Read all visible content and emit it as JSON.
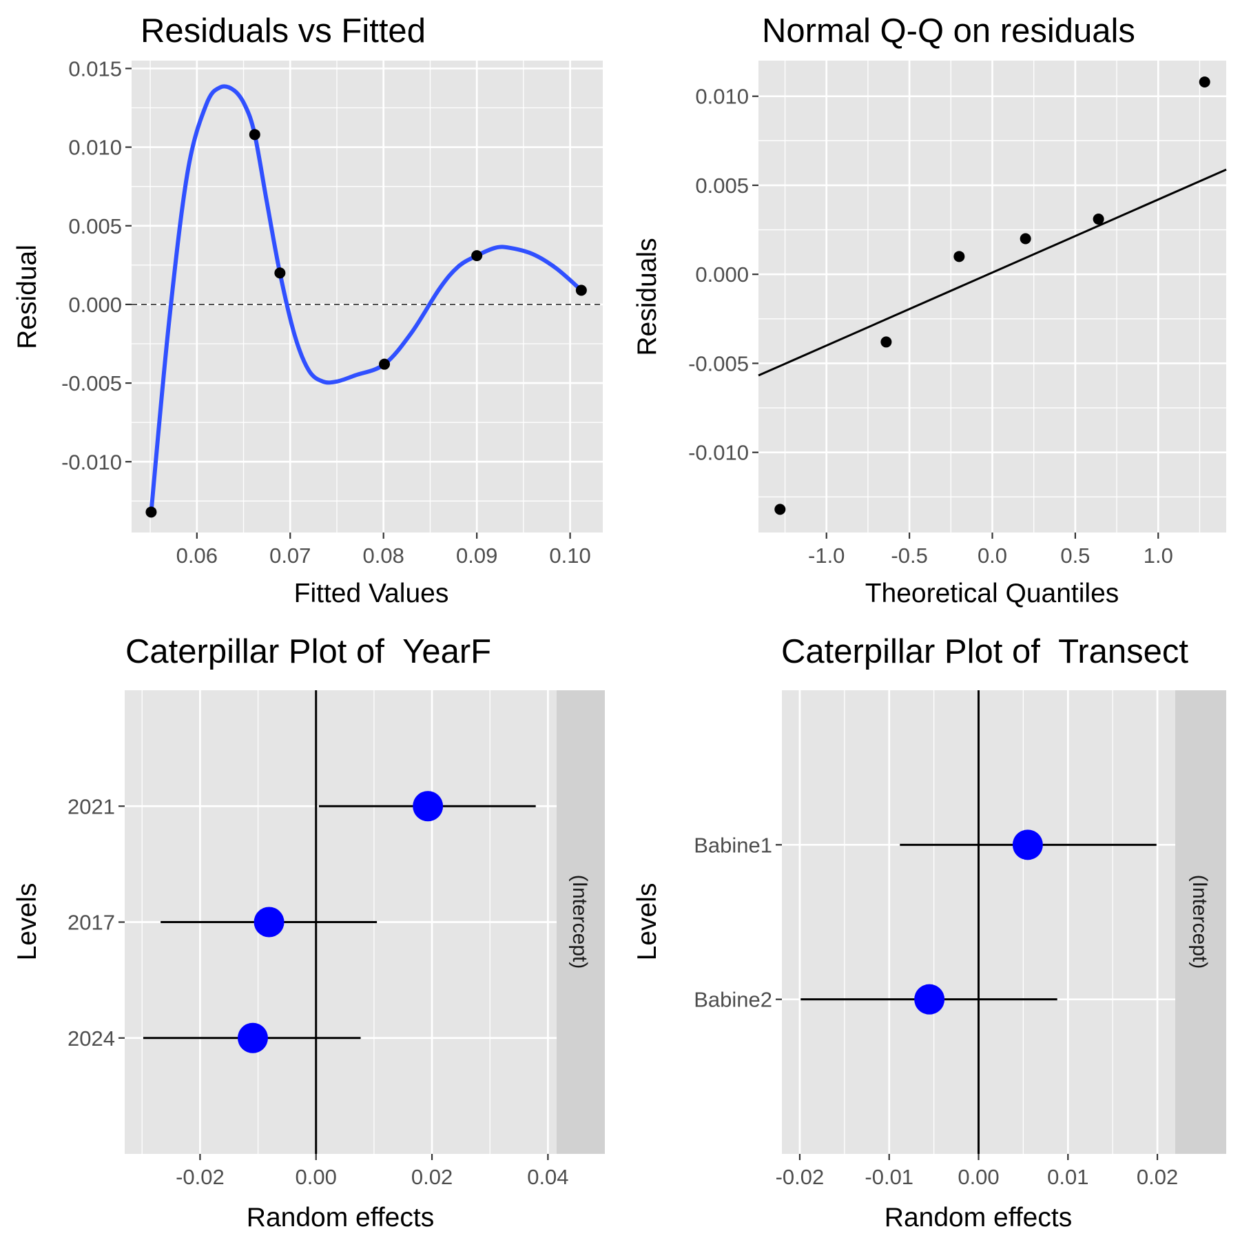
{
  "colors": {
    "panel_background": "#e5e5e5",
    "grid_major": "#ffffff",
    "strip_background": "#d1d1d1",
    "smooth_line": "#3050ff",
    "point_blue": "#0000ff",
    "point_black": "#000000"
  },
  "chart_data": [
    {
      "type": "scatter",
      "title": "Residuals vs Fitted",
      "xlabel": "Fitted Values",
      "ylabel": "Residual",
      "xlim": [
        0.053,
        0.1035
      ],
      "ylim": [
        -0.0145,
        0.0155
      ],
      "x_ticks": [
        0.06,
        0.07,
        0.08,
        0.09,
        0.1
      ],
      "x_tick_labels": [
        "0.06",
        "0.07",
        "0.08",
        "0.09",
        "0.10"
      ],
      "y_ticks": [
        -0.01,
        -0.005,
        0.0,
        0.005,
        0.01,
        0.015
      ],
      "y_tick_labels": [
        "-0.010",
        "-0.005",
        "0.000",
        "0.005",
        "0.010",
        "0.015"
      ],
      "points": [
        {
          "x": 0.0551,
          "y": -0.0132
        },
        {
          "x": 0.0662,
          "y": 0.0108
        },
        {
          "x": 0.0689,
          "y": 0.002
        },
        {
          "x": 0.0801,
          "y": -0.0038
        },
        {
          "x": 0.09,
          "y": 0.0031
        },
        {
          "x": 0.1012,
          "y": 0.0009
        }
      ],
      "smooth": [
        {
          "x": 0.0551,
          "y": -0.0132
        },
        {
          "x": 0.057,
          "y": -0.0012
        },
        {
          "x": 0.059,
          "y": 0.0084
        },
        {
          "x": 0.061,
          "y": 0.0127
        },
        {
          "x": 0.0625,
          "y": 0.0138
        },
        {
          "x": 0.064,
          "y": 0.0136
        },
        {
          "x": 0.0652,
          "y": 0.0126
        },
        {
          "x": 0.0662,
          "y": 0.0108
        },
        {
          "x": 0.0675,
          "y": 0.0065
        },
        {
          "x": 0.0689,
          "y": 0.002
        },
        {
          "x": 0.0705,
          "y": -0.002
        },
        {
          "x": 0.072,
          "y": -0.0042
        },
        {
          "x": 0.0735,
          "y": -0.0049
        },
        {
          "x": 0.075,
          "y": -0.0049
        },
        {
          "x": 0.077,
          "y": -0.0045
        },
        {
          "x": 0.0801,
          "y": -0.0038
        },
        {
          "x": 0.083,
          "y": -0.0018
        },
        {
          "x": 0.086,
          "y": 0.001
        },
        {
          "x": 0.088,
          "y": 0.0024
        },
        {
          "x": 0.09,
          "y": 0.0031
        },
        {
          "x": 0.092,
          "y": 0.0036
        },
        {
          "x": 0.0935,
          "y": 0.0036
        },
        {
          "x": 0.096,
          "y": 0.0032
        },
        {
          "x": 0.0985,
          "y": 0.0023
        },
        {
          "x": 0.1012,
          "y": 0.0009
        }
      ],
      "reference_line": {
        "y": 0.0,
        "style": "dashed"
      }
    },
    {
      "type": "scatter",
      "title": "Normal Q-Q on residuals",
      "xlabel": "Theoretical Quantiles",
      "ylabel": "Residuals",
      "xlim": [
        -1.41,
        1.41
      ],
      "ylim": [
        -0.0145,
        0.012
      ],
      "x_ticks": [
        -1.0,
        -0.5,
        0.0,
        0.5,
        1.0
      ],
      "x_tick_labels": [
        "-1.0",
        "-0.5",
        "0.0",
        "0.5",
        "1.0"
      ],
      "y_ticks": [
        -0.01,
        -0.005,
        0.0,
        0.005,
        0.01
      ],
      "y_tick_labels": [
        "-0.010",
        "-0.005",
        "0.000",
        "0.005",
        "0.010"
      ],
      "points": [
        {
          "x": -1.28,
          "y": -0.0132
        },
        {
          "x": -0.64,
          "y": -0.0038
        },
        {
          "x": -0.2,
          "y": 0.001
        },
        {
          "x": 0.2,
          "y": 0.002
        },
        {
          "x": 0.64,
          "y": 0.0031
        },
        {
          "x": 1.28,
          "y": 0.0108
        }
      ],
      "qq_line": {
        "intercept": 0.0001,
        "slope": 0.0041
      }
    },
    {
      "type": "scatter",
      "title": "Caterpillar Plot of  YearF",
      "xlabel": "Random effects",
      "ylabel": "Levels",
      "strip_label": "(Intercept)",
      "xlim": [
        -0.033,
        0.0415
      ],
      "x_ticks": [
        -0.02,
        0.0,
        0.02,
        0.04
      ],
      "x_tick_labels": [
        "-0.02",
        "0.00",
        "0.02",
        "0.04"
      ],
      "levels": [
        "2024",
        "2017",
        "2021"
      ],
      "estimates": [
        {
          "level": "2021",
          "value": 0.0193,
          "low": 0.0005,
          "high": 0.0379
        },
        {
          "level": "2017",
          "value": -0.0081,
          "low": -0.0268,
          "high": 0.0105
        },
        {
          "level": "2024",
          "value": -0.0109,
          "low": -0.0298,
          "high": 0.0077
        }
      ],
      "reference_line": {
        "x": 0.0
      }
    },
    {
      "type": "scatter",
      "title": "Caterpillar Plot of  Transect",
      "xlabel": "Random effects",
      "ylabel": "Levels",
      "strip_label": "(Intercept)",
      "xlim": [
        -0.022,
        0.022
      ],
      "x_ticks": [
        -0.02,
        -0.01,
        0.0,
        0.01,
        0.02
      ],
      "x_tick_labels": [
        "-0.02",
        "-0.01",
        "0.00",
        "0.01",
        "0.02"
      ],
      "levels": [
        "Babine2",
        "Babine1"
      ],
      "estimates": [
        {
          "level": "Babine1",
          "value": 0.0055,
          "low": -0.0088,
          "high": 0.0199
        },
        {
          "level": "Babine2",
          "value": -0.0055,
          "low": -0.0199,
          "high": 0.0088
        }
      ],
      "reference_line": {
        "x": 0.0
      }
    }
  ]
}
